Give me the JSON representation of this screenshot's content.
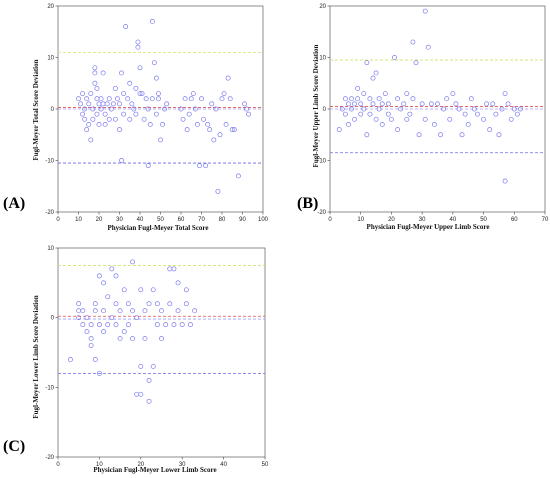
{
  "chart_data": [
    {
      "type": "scatter",
      "panel_label": "(A)",
      "xlabel": "Physician Fugl-Meyer Total Score",
      "ylabel": "Fugl-Meyer Total Score Deviation",
      "xlim": [
        0,
        100
      ],
      "ylim": [
        -20,
        20
      ],
      "xticks": [
        0,
        10,
        20,
        30,
        40,
        50,
        60,
        70,
        80,
        90,
        100
      ],
      "yticks": [
        -20,
        -10,
        0,
        10,
        20
      ],
      "reference_lines": {
        "upper": 11,
        "mean": 0.3,
        "zero": 0,
        "lower": -10.5
      },
      "colors": {
        "points": "#7b7bf0",
        "upper": "#c8e66a",
        "mean": "#e05050",
        "zero": "#a0a0ff",
        "lower": "#6a6ae8"
      },
      "points": [
        [
          10,
          2
        ],
        [
          11,
          1
        ],
        [
          12,
          -1
        ],
        [
          12,
          3
        ],
        [
          13,
          0
        ],
        [
          13,
          -2
        ],
        [
          14,
          2
        ],
        [
          14,
          -4
        ],
        [
          15,
          1
        ],
        [
          15,
          -3
        ],
        [
          16,
          3
        ],
        [
          16,
          -6
        ],
        [
          17,
          0
        ],
        [
          17,
          -2
        ],
        [
          18,
          5
        ],
        [
          18,
          7
        ],
        [
          18,
          8
        ],
        [
          19,
          4
        ],
        [
          19,
          -1
        ],
        [
          19,
          2
        ],
        [
          20,
          1
        ],
        [
          20,
          -3
        ],
        [
          21,
          2
        ],
        [
          21,
          0
        ],
        [
          22,
          1
        ],
        [
          22,
          7
        ],
        [
          23,
          -1
        ],
        [
          23,
          -3
        ],
        [
          24,
          1
        ],
        [
          25,
          2
        ],
        [
          25,
          -2
        ],
        [
          26,
          0
        ],
        [
          27,
          1
        ],
        [
          28,
          4
        ],
        [
          28,
          -2
        ],
        [
          29,
          2
        ],
        [
          30,
          -4
        ],
        [
          30,
          1
        ],
        [
          31,
          7
        ],
        [
          31,
          -10
        ],
        [
          32,
          3
        ],
        [
          32,
          -1
        ],
        [
          33,
          16
        ],
        [
          34,
          2
        ],
        [
          35,
          -2
        ],
        [
          35,
          5
        ],
        [
          36,
          1
        ],
        [
          37,
          0
        ],
        [
          38,
          -1
        ],
        [
          38,
          4
        ],
        [
          39,
          12
        ],
        [
          39,
          13
        ],
        [
          40,
          8
        ],
        [
          40,
          3
        ],
        [
          41,
          3
        ],
        [
          42,
          -2
        ],
        [
          43,
          2
        ],
        [
          44,
          -11
        ],
        [
          44,
          0
        ],
        [
          45,
          -3
        ],
        [
          46,
          17
        ],
        [
          46,
          2
        ],
        [
          47,
          9
        ],
        [
          48,
          -1
        ],
        [
          48,
          6
        ],
        [
          49,
          3
        ],
        [
          49,
          2
        ],
        [
          50,
          -6
        ],
        [
          51,
          -3
        ],
        [
          52,
          0
        ],
        [
          53,
          1
        ],
        [
          60,
          0
        ],
        [
          61,
          -2
        ],
        [
          62,
          2
        ],
        [
          63,
          -4
        ],
        [
          64,
          -1
        ],
        [
          65,
          2
        ],
        [
          66,
          3
        ],
        [
          67,
          0
        ],
        [
          68,
          -3
        ],
        [
          69,
          -11
        ],
        [
          70,
          2
        ],
        [
          71,
          -2
        ],
        [
          72,
          -11
        ],
        [
          73,
          -3
        ],
        [
          74,
          -4
        ],
        [
          75,
          1
        ],
        [
          76,
          -6
        ],
        [
          77,
          0
        ],
        [
          78,
          -16
        ],
        [
          79,
          -5
        ],
        [
          80,
          2
        ],
        [
          81,
          3
        ],
        [
          82,
          -3
        ],
        [
          83,
          6
        ],
        [
          84,
          2
        ],
        [
          85,
          -4
        ],
        [
          86,
          -4
        ],
        [
          88,
          -13
        ],
        [
          91,
          1
        ],
        [
          92,
          0
        ],
        [
          93,
          -1
        ]
      ]
    },
    {
      "type": "scatter",
      "panel_label": "(B)",
      "xlabel": "Physician Fugl-Meyer Upper Limb Score",
      "ylabel": "Fugl-Meyer Upper Limb Score Deviation",
      "xlim": [
        0,
        70
      ],
      "ylim": [
        -20,
        20
      ],
      "xticks": [
        0,
        10,
        20,
        30,
        40,
        50,
        60,
        70
      ],
      "yticks": [
        -20,
        -10,
        0,
        10,
        20
      ],
      "reference_lines": {
        "upper": 9.5,
        "mean": 0.5,
        "zero": 0,
        "lower": -8.5
      },
      "colors": {
        "points": "#7b7bf0",
        "upper": "#c8e66a",
        "mean": "#e05050",
        "zero": "#a0a0ff",
        "lower": "#6a6ae8"
      },
      "points": [
        [
          3,
          -4
        ],
        [
          4,
          0
        ],
        [
          5,
          -1
        ],
        [
          5,
          2
        ],
        [
          6,
          1
        ],
        [
          6,
          -3
        ],
        [
          7,
          0
        ],
        [
          7,
          2
        ],
        [
          8,
          1
        ],
        [
          8,
          -2
        ],
        [
          9,
          2
        ],
        [
          9,
          4
        ],
        [
          10,
          1
        ],
        [
          10,
          -1
        ],
        [
          11,
          0
        ],
        [
          11,
          3
        ],
        [
          12,
          -5
        ],
        [
          12,
          9
        ],
        [
          13,
          2
        ],
        [
          13,
          -1
        ],
        [
          14,
          6
        ],
        [
          14,
          1
        ],
        [
          15,
          7
        ],
        [
          15,
          -2
        ],
        [
          16,
          2
        ],
        [
          16,
          0
        ],
        [
          17,
          1
        ],
        [
          17,
          -3
        ],
        [
          18,
          3
        ],
        [
          19,
          -1
        ],
        [
          19,
          1
        ],
        [
          20,
          -2
        ],
        [
          21,
          10
        ],
        [
          22,
          2
        ],
        [
          22,
          -4
        ],
        [
          23,
          0
        ],
        [
          24,
          1
        ],
        [
          25,
          3
        ],
        [
          25,
          -2
        ],
        [
          26,
          -1
        ],
        [
          27,
          13
        ],
        [
          27,
          2
        ],
        [
          28,
          9
        ],
        [
          29,
          -5
        ],
        [
          30,
          1
        ],
        [
          31,
          19
        ],
        [
          31,
          -2
        ],
        [
          32,
          12
        ],
        [
          33,
          1
        ],
        [
          34,
          -3
        ],
        [
          35,
          1
        ],
        [
          36,
          -5
        ],
        [
          37,
          0
        ],
        [
          38,
          2
        ],
        [
          39,
          -2
        ],
        [
          40,
          3
        ],
        [
          41,
          1
        ],
        [
          42,
          0
        ],
        [
          43,
          -5
        ],
        [
          44,
          -1
        ],
        [
          45,
          -3
        ],
        [
          46,
          2
        ],
        [
          47,
          0
        ],
        [
          48,
          -1
        ],
        [
          50,
          -2
        ],
        [
          51,
          1
        ],
        [
          52,
          -4
        ],
        [
          53,
          1
        ],
        [
          54,
          -1
        ],
        [
          55,
          -5
        ],
        [
          56,
          0
        ],
        [
          57,
          3
        ],
        [
          57,
          -14
        ],
        [
          58,
          1
        ],
        [
          59,
          -2
        ],
        [
          60,
          0
        ],
        [
          61,
          -1
        ],
        [
          62,
          0
        ]
      ]
    },
    {
      "type": "scatter",
      "panel_label": "(C)",
      "xlabel": "Physician Fugl-Meyer Lower Limb Score",
      "ylabel": "Fugl-Meyer Lower Limb Score Deviation",
      "xlim": [
        0,
        50
      ],
      "ylim": [
        -20,
        10
      ],
      "xticks": [
        0,
        10,
        20,
        30,
        40,
        50
      ],
      "yticks": [
        -20,
        -10,
        0,
        10
      ],
      "reference_lines": {
        "upper": 7.5,
        "mean": 0.2,
        "zero": -0.2,
        "lower": -8
      },
      "colors": {
        "points": "#7b7bf0",
        "upper": "#c8e66a",
        "mean": "#e05050",
        "zero": "#a0a0ff",
        "lower": "#6a6ae8"
      },
      "points": [
        [
          3,
          -6
        ],
        [
          5,
          1
        ],
        [
          5,
          2
        ],
        [
          5,
          0
        ],
        [
          6,
          -1
        ],
        [
          6,
          1
        ],
        [
          7,
          0
        ],
        [
          7,
          -2
        ],
        [
          8,
          -3
        ],
        [
          8,
          -4
        ],
        [
          8,
          -1
        ],
        [
          9,
          -6
        ],
        [
          9,
          1
        ],
        [
          9,
          2
        ],
        [
          10,
          -8
        ],
        [
          10,
          6
        ],
        [
          10,
          -1
        ],
        [
          11,
          5
        ],
        [
          11,
          1
        ],
        [
          11,
          -2
        ],
        [
          12,
          3
        ],
        [
          12,
          -1
        ],
        [
          13,
          7
        ],
        [
          13,
          0
        ],
        [
          14,
          6
        ],
        [
          14,
          2
        ],
        [
          14,
          -1
        ],
        [
          15,
          1
        ],
        [
          15,
          -3
        ],
        [
          16,
          4
        ],
        [
          16,
          -2
        ],
        [
          17,
          -1
        ],
        [
          17,
          2
        ],
        [
          18,
          8
        ],
        [
          18,
          1
        ],
        [
          18,
          -3
        ],
        [
          19,
          0
        ],
        [
          19,
          -11
        ],
        [
          20,
          -7
        ],
        [
          20,
          -11
        ],
        [
          20,
          4
        ],
        [
          21,
          -3
        ],
        [
          21,
          1
        ],
        [
          22,
          -12
        ],
        [
          22,
          -9
        ],
        [
          22,
          2
        ],
        [
          23,
          -7
        ],
        [
          23,
          4
        ],
        [
          24,
          -1
        ],
        [
          24,
          2
        ],
        [
          25,
          1
        ],
        [
          25,
          -3
        ],
        [
          26,
          -1
        ],
        [
          27,
          7
        ],
        [
          27,
          2
        ],
        [
          28,
          7
        ],
        [
          28,
          -1
        ],
        [
          29,
          5
        ],
        [
          29,
          1
        ],
        [
          30,
          -1
        ],
        [
          31,
          4
        ],
        [
          31,
          2
        ],
        [
          32,
          -1
        ],
        [
          33,
          1
        ]
      ]
    }
  ]
}
